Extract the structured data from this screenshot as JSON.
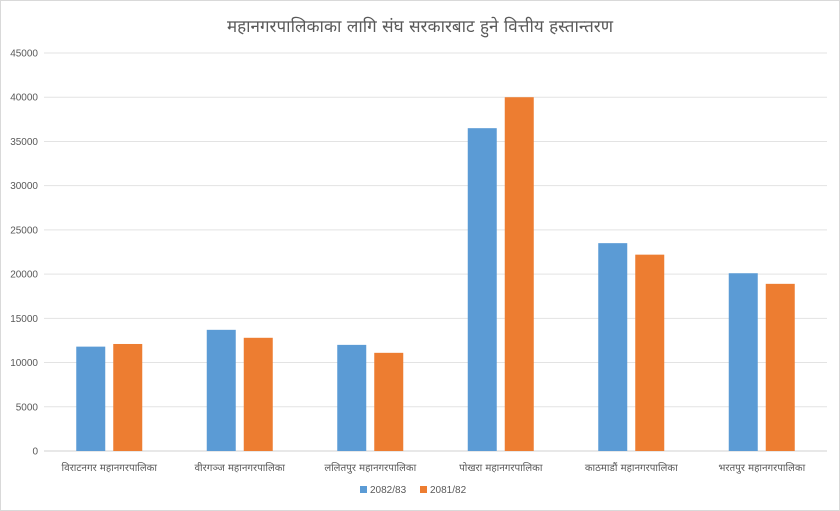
{
  "chart_data": {
    "type": "bar",
    "title": "महानगरपालिकाका लागि संघ सरकारबाट हुने वित्तीय हस्तान्तरण",
    "xlabel": "",
    "ylabel": "",
    "ylim": [
      0,
      45000
    ],
    "yticks": [
      0,
      5000,
      10000,
      15000,
      20000,
      25000,
      30000,
      35000,
      40000,
      45000
    ],
    "grid": true,
    "legend_position": "bottom",
    "categories": [
      "विराटनगर महानगरपालिका",
      "वीरगञ्ज महानगरपालिका",
      "ललितपुर महानगरपालिका",
      "पोखरा महानगरपालिका",
      "काठमाडौं महानगरपालिका",
      "भरतपुर महानगरपालिका"
    ],
    "series": [
      {
        "name": "2082/83",
        "color": "#5b9bd5",
        "values": [
          11800,
          13700,
          12000,
          36500,
          23500,
          20100
        ]
      },
      {
        "name": "2081/82",
        "color": "#ed7d31",
        "values": [
          12100,
          12800,
          11100,
          40000,
          22200,
          18900
        ]
      }
    ]
  }
}
